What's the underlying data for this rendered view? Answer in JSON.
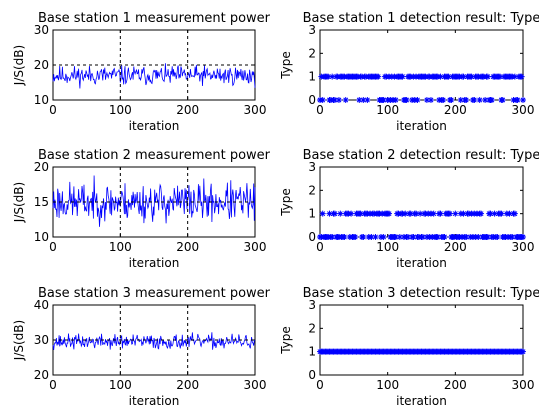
{
  "chart_data": [
    {
      "type": "line",
      "title": "Base station 1 measurement power",
      "xlabel": "iteration",
      "ylabel": "J/S(dB)",
      "xlim": [
        0,
        300
      ],
      "ylim": [
        10,
        30
      ],
      "xticks": [
        0,
        100,
        200,
        300
      ],
      "yticks": [
        10,
        20,
        30
      ],
      "vlines": [
        100,
        200
      ],
      "hlines": [
        20
      ],
      "series": [
        {
          "color": "#0000ff",
          "mean": 17,
          "spread": 1.7,
          "clip": [
            13,
            20.5
          ],
          "seed": 11
        }
      ]
    },
    {
      "type": "scatter",
      "title": "Base station 1 detection result: Type",
      "xlabel": "iteration",
      "ylabel": "Type",
      "xlim": [
        0,
        300
      ],
      "ylim": [
        0,
        3
      ],
      "xticks": [
        0,
        100,
        200,
        300
      ],
      "yticks": [
        0,
        1,
        2,
        3
      ],
      "marker": "asterisk",
      "series": [
        {
          "color": "#0000ff",
          "levels": [
            1,
            0
          ],
          "zero_ratio": 0.25,
          "seed": 5
        }
      ]
    },
    {
      "type": "line",
      "title": "Base station 2 measurement power",
      "xlabel": "iteration",
      "ylabel": "J/S(dB)",
      "xlim": [
        0,
        300
      ],
      "ylim": [
        10,
        20
      ],
      "xticks": [
        0,
        100,
        200,
        300
      ],
      "yticks": [
        10,
        15,
        20
      ],
      "vlines": [
        100,
        200
      ],
      "hlines": [
        15
      ],
      "series": [
        {
          "color": "#0000ff",
          "mean": 15,
          "spread": 1.7,
          "clip": [
            11,
            19.6
          ],
          "seed": 23
        }
      ]
    },
    {
      "type": "scatter",
      "title": "Base station 2 detection result: Type",
      "xlabel": "iteration",
      "ylabel": "Type",
      "xlim": [
        0,
        300
      ],
      "ylim": [
        0,
        3
      ],
      "xticks": [
        0,
        100,
        200,
        300
      ],
      "yticks": [
        0,
        1,
        2,
        3
      ],
      "marker": "asterisk",
      "series": [
        {
          "color": "#0000ff",
          "levels": [
            1,
            0
          ],
          "zero_ratio": 0.5,
          "seed": 9
        }
      ]
    },
    {
      "type": "line",
      "title": "Base station 3 measurement power",
      "xlabel": "iteration",
      "ylabel": "J/S(dB)",
      "xlim": [
        0,
        300
      ],
      "ylim": [
        20,
        40
      ],
      "xticks": [
        0,
        100,
        200,
        300
      ],
      "yticks": [
        20,
        30,
        40
      ],
      "vlines": [
        100,
        200
      ],
      "hlines": [
        30
      ],
      "series": [
        {
          "color": "#0000ff",
          "mean": 29.5,
          "spread": 1.3,
          "clip": [
            26,
            34
          ],
          "seed": 37
        }
      ]
    },
    {
      "type": "scatter",
      "title": "Base station 3 detection result: Type",
      "xlabel": "iteration",
      "ylabel": "Type",
      "xlim": [
        0,
        300
      ],
      "ylim": [
        0,
        3
      ],
      "xticks": [
        0,
        100,
        200,
        300
      ],
      "yticks": [
        0,
        1,
        2,
        3
      ],
      "marker": "asterisk",
      "series": [
        {
          "color": "#0000ff",
          "levels": [
            1
          ],
          "zero_ratio": 0,
          "seed": 3
        }
      ]
    }
  ]
}
